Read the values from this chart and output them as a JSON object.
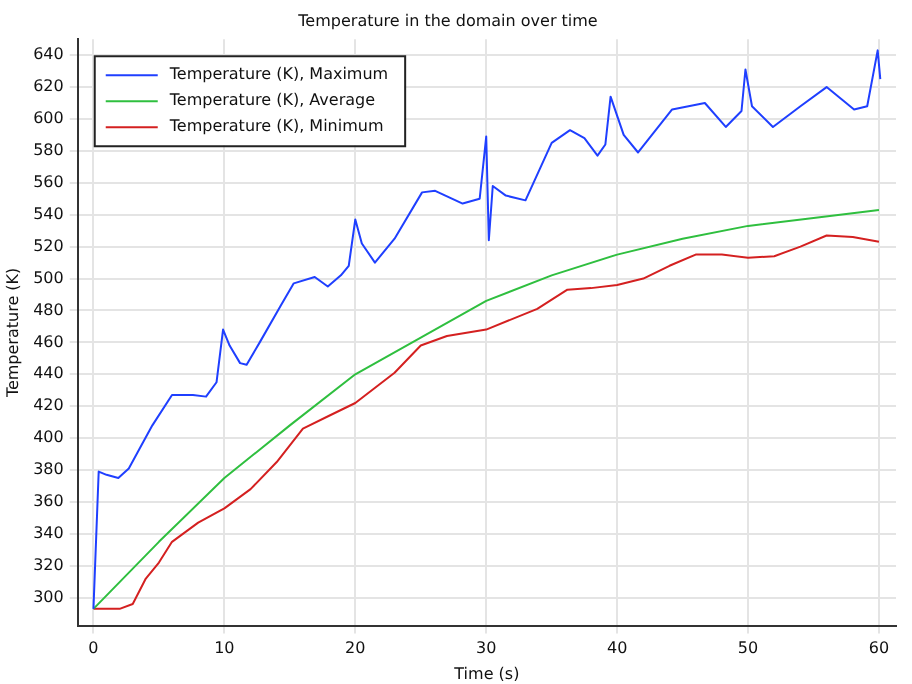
{
  "chart_data": {
    "type": "line",
    "title": "Temperature in the domain over time",
    "xlabel": "Time (s)",
    "ylabel": "Temperature (K)",
    "xlim": [
      -1.2,
      61.3
    ],
    "ylim": [
      282.5,
      650
    ],
    "xticks": [
      0,
      10,
      20,
      30,
      40,
      50,
      60
    ],
    "yticks": [
      300,
      320,
      340,
      360,
      380,
      400,
      420,
      440,
      460,
      480,
      500,
      520,
      540,
      560,
      580,
      600,
      620,
      640
    ],
    "grid": true,
    "legend": "top left",
    "marker": "none",
    "line_style": "solid",
    "series": [
      {
        "name": "Temperature (K), Maximum",
        "color": "#1f3fff",
        "x": [
          0,
          0.4,
          1,
          1.9,
          2.7,
          3.5,
          4.5,
          6,
          7.6,
          8.6,
          9.4,
          9.9,
          10.4,
          11.2,
          11.7,
          12.7,
          14.3,
          15.3,
          16.9,
          17.9,
          18.9,
          19.5,
          20,
          20.5,
          21.5,
          23,
          25.1,
          26.1,
          28.2,
          29.5,
          30,
          30.2,
          30.5,
          31.5,
          33,
          35,
          36.4,
          37.5,
          38.5,
          39.1,
          39.5,
          40.5,
          41.6,
          44.2,
          46.7,
          48.3,
          49.5,
          49.8,
          50.3,
          51.9,
          54,
          56,
          58.1,
          59.1,
          59.9,
          60.1
        ],
        "values": [
          293,
          379,
          377,
          375,
          381,
          393,
          408,
          427,
          427,
          426,
          435,
          468,
          458,
          447,
          446,
          460,
          483,
          497,
          501,
          495,
          502,
          508,
          537,
          522,
          510,
          525,
          554,
          555,
          547,
          550,
          589,
          524,
          558,
          552,
          549,
          585,
          593,
          588,
          577,
          584,
          614,
          590,
          579,
          606,
          610,
          595,
          605,
          631,
          608,
          595,
          608,
          620,
          606,
          608,
          643,
          625
        ]
      },
      {
        "name": "Temperature (K), Average",
        "color": "#2fbf3f",
        "x": [
          0,
          5,
          10,
          15,
          20,
          25,
          30,
          35,
          40,
          45,
          50,
          55,
          60
        ],
        "values": [
          293,
          335,
          375,
          408,
          440,
          463,
          486,
          502,
          515,
          525,
          533,
          538,
          543
        ]
      },
      {
        "name": "Temperature (K), Minimum",
        "color": "#d42020",
        "x": [
          0,
          2,
          3,
          4,
          5,
          6,
          8,
          10,
          12,
          14,
          16,
          18,
          20,
          23,
          25,
          27,
          30,
          33.9,
          36.2,
          38,
          40,
          42,
          44,
          46,
          48,
          50,
          52,
          54,
          56,
          58,
          60
        ],
        "values": [
          293,
          293,
          296,
          312,
          322,
          335,
          347,
          356,
          368,
          385,
          406,
          414,
          422,
          441,
          458,
          464,
          468,
          481,
          493,
          494,
          496,
          500,
          508,
          515,
          515,
          513,
          514,
          520,
          527,
          526,
          523
        ]
      }
    ]
  }
}
